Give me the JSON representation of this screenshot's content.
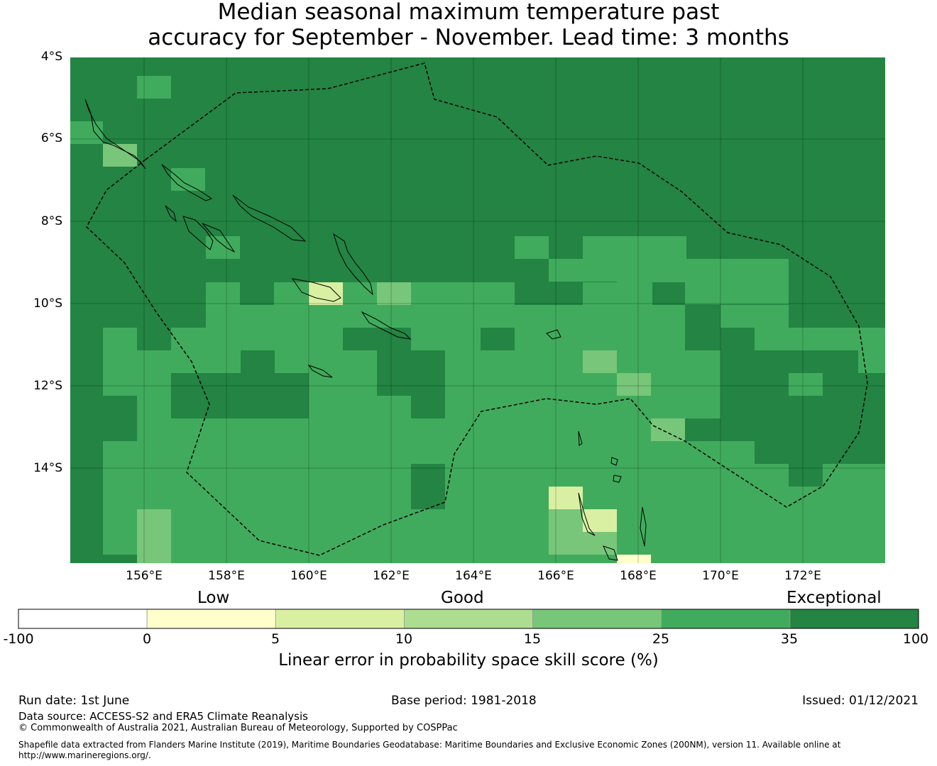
{
  "title_line1": "Median seasonal maximum temperature past",
  "title_line2": "accuracy for September - November. Lead time: 3 months",
  "lat_labels": [
    "4°S",
    "6°S",
    "8°S",
    "10°S",
    "12°S",
    "14°S"
  ],
  "lon_labels": [
    "156°E",
    "158°E",
    "160°E",
    "162°E",
    "164°E",
    "166°E",
    "168°E",
    "170°E",
    "172°E"
  ],
  "colorbar": {
    "categories": [
      "Low",
      "Good",
      "Exceptional"
    ],
    "ticks": [
      "-100",
      "0",
      "5",
      "10",
      "15",
      "25",
      "35",
      "100"
    ],
    "colors": [
      "#ffffff",
      "#ffffcc",
      "#d9f0a3",
      "#addd8e",
      "#78c679",
      "#41ab5d",
      "#238443"
    ],
    "label": "Linear error in probability space skill score (%)"
  },
  "map_colors": {
    "exceptional_dark": "#238443",
    "exceptional_light": "#41ab5d",
    "good": "#78c679",
    "low": "#d9f0a3",
    "very_low": "#ffffcc"
  },
  "footer": {
    "run_date": "Run date: 1st June",
    "base_period": "Base period: 1981-2018",
    "issued": "Issued: 01/12/2021",
    "data_source": "Data source: ACCESS-S2 and ERA5 Climate Reanalysis",
    "copyright": "© Commonwealth of Australia 2021, Australian Bureau of Meteorology, Supported by COSPPac",
    "shapefile_line1": "Shapefile data extracted from Flanders Marine Institute (2019), Maritime Boundaries Geodatabase: Maritime Boundaries and Exclusive Economic Zones (200NM), version 11. Available online at",
    "shapefile_line2": "http://www.marineregions.org/."
  }
}
